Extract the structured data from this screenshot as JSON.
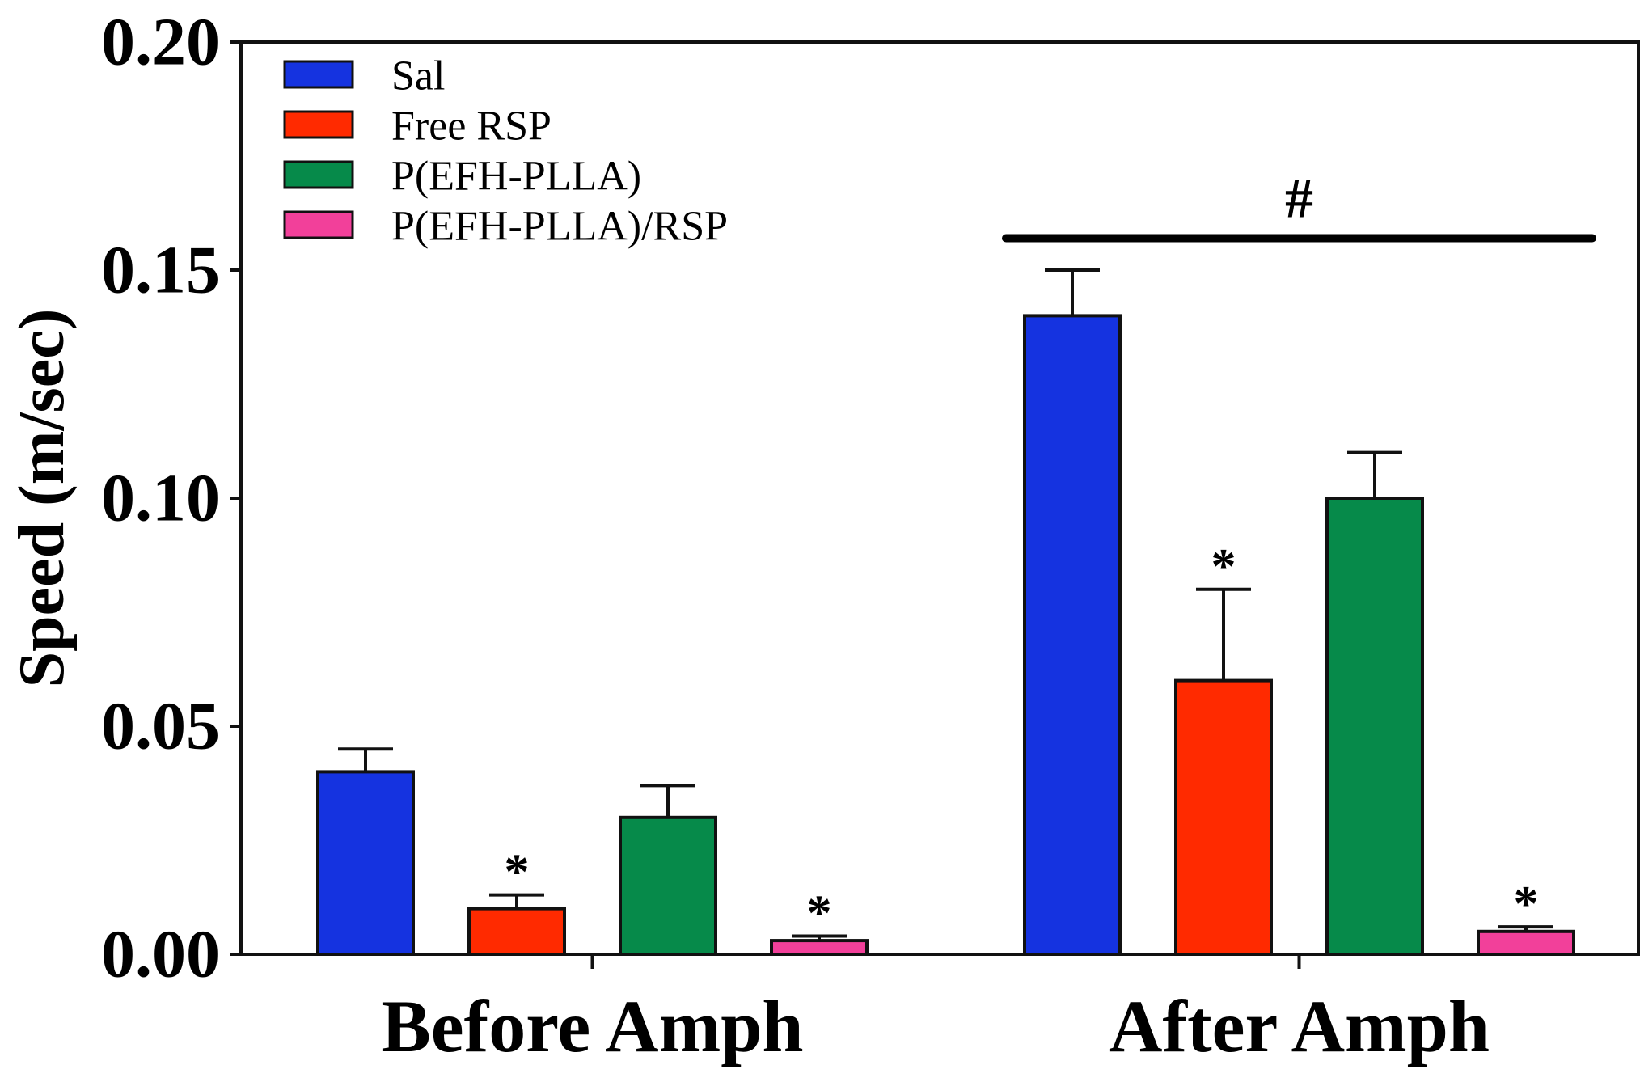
{
  "chart_data": {
    "type": "bar",
    "title": "",
    "xlabel": "",
    "ylabel": "Speed (m/sec)",
    "ylim": [
      0,
      0.2
    ],
    "yticks": [
      "0.00",
      "0.05",
      "0.10",
      "0.15",
      "0.20"
    ],
    "categories": [
      "Before Amph",
      "After Amph"
    ],
    "series": [
      {
        "name": "Sal",
        "color": "#1533e0",
        "values": [
          0.04,
          0.14
        ],
        "errors": [
          0.005,
          0.01
        ],
        "significance": [
          "",
          ""
        ]
      },
      {
        "name": "Free RSP",
        "color": "#ff2a00",
        "values": [
          0.01,
          0.06
        ],
        "errors": [
          0.003,
          0.02
        ],
        "significance": [
          "*",
          "*"
        ]
      },
      {
        "name": "P(EFH-PLLA)",
        "color": "#068a4a",
        "values": [
          0.03,
          0.1
        ],
        "errors": [
          0.007,
          0.01
        ],
        "significance": [
          "",
          ""
        ]
      },
      {
        "name": "P(EFH-PLLA)/RSP",
        "color": "#f2409a",
        "values": [
          0.003,
          0.005
        ],
        "errors": [
          0.001,
          0.001
        ],
        "significance": [
          "*",
          "*"
        ]
      }
    ],
    "group_annotation": {
      "category": "After Amph",
      "symbol": "#",
      "level": 0.157
    },
    "legend": {
      "position": "top-left"
    },
    "grid": false
  }
}
